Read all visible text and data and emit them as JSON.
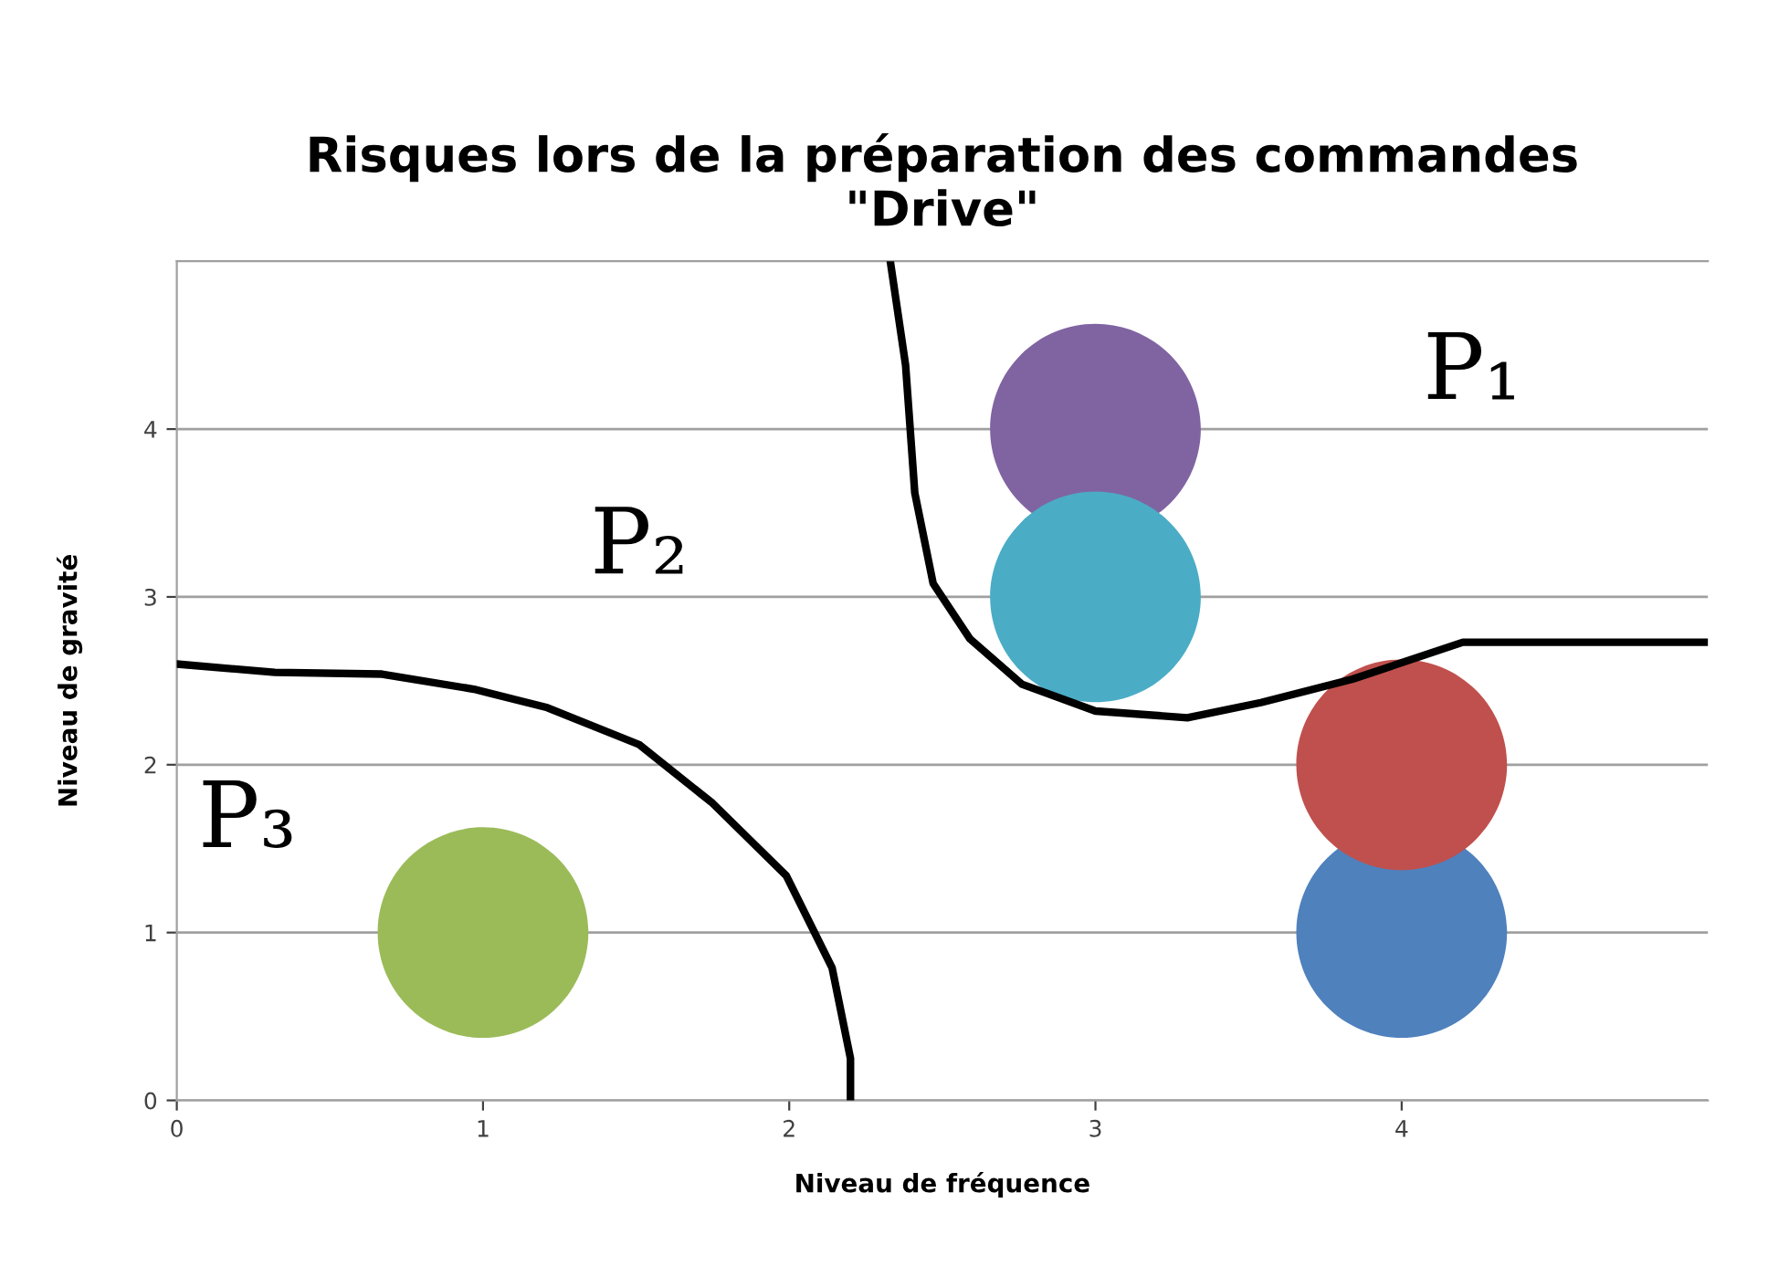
{
  "chart_data": {
    "type": "bubble",
    "title": "Risques lors de la préparation des commandes\n\"Drive\"",
    "xlabel": "Niveau de fréquence",
    "ylabel": "Niveau de gravité",
    "x": [
      1,
      4,
      4,
      3,
      3
    ],
    "values": [
      1,
      1,
      2,
      4,
      3
    ],
    "sizes": [
      1,
      1,
      1,
      1,
      1
    ],
    "colors": [
      "#9bbb59",
      "#4f81bd",
      "#c0504d",
      "#8064a2",
      "#4bacc6"
    ],
    "series": [
      {
        "type": "line",
        "color": "#000000",
        "x": [
          2.33,
          2.38,
          2.41,
          2.47,
          2.59,
          2.76,
          3.0,
          3.3,
          3.54,
          3.84,
          4.2,
          5.0
        ],
        "values": [
          5.0,
          4.38,
          3.62,
          3.08,
          2.75,
          2.48,
          2.32,
          2.28,
          2.37,
          2.51,
          2.73,
          2.73
        ]
      },
      {
        "type": "line",
        "color": "#000000",
        "x": [
          0,
          0.32,
          0.67,
          0.97,
          1.21,
          1.51,
          1.75,
          1.99,
          2.14,
          2.2,
          2.2
        ],
        "values": [
          2.6,
          2.55,
          2.54,
          2.45,
          2.34,
          2.12,
          1.77,
          1.34,
          0.79,
          0.25,
          0
        ]
      }
    ],
    "annotations": [
      "P₁",
      "P₂",
      "P₃"
    ],
    "xlim": [
      0,
      5
    ],
    "ylim": [
      0,
      5
    ],
    "xticks": [
      0,
      1,
      2,
      3,
      4
    ],
    "yticks": [
      0,
      1,
      2,
      3,
      4
    ],
    "grid": "y"
  }
}
